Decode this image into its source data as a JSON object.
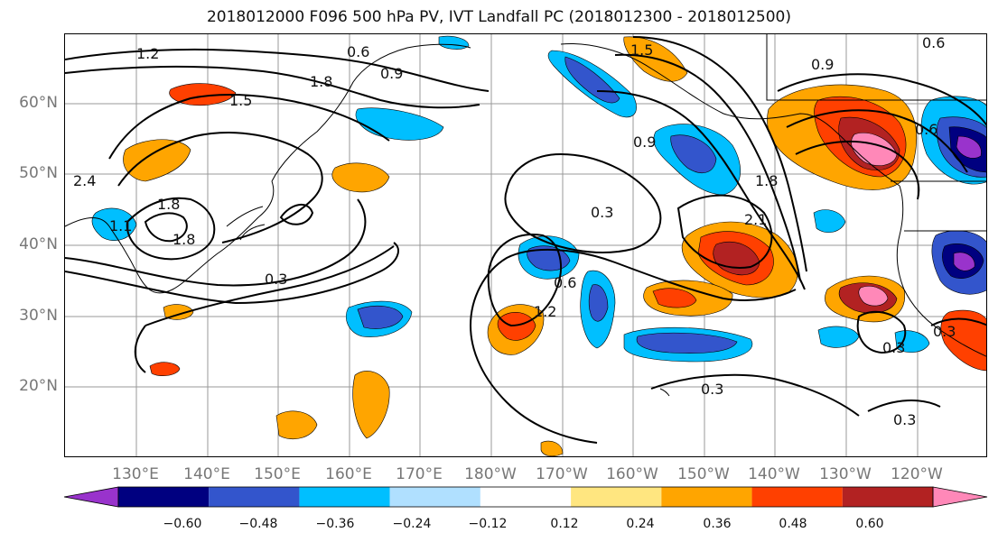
{
  "title": "2018012000 F096 500 hPa PV, IVT Landfall PC (2018012300 - 2018012500)",
  "lat_labels": [
    "60°N",
    "50°N",
    "40°N",
    "30°N",
    "20°N"
  ],
  "lon_labels": [
    "130°E",
    "140°E",
    "150°E",
    "160°E",
    "170°E",
    "180°W",
    "170°W",
    "160°W",
    "150°W",
    "140°W",
    "130°W",
    "120°W"
  ],
  "colorbar": {
    "ticks": [
      "−0.60",
      "−0.48",
      "−0.36",
      "−0.24",
      "−0.12",
      "0.12",
      "0.24",
      "0.36",
      "0.48",
      "0.60"
    ],
    "colors": [
      "#9933cc",
      "#000080",
      "#3355cc",
      "#00bfff",
      "#b0e0ff",
      "#ffffff",
      "#ffe680",
      "#ffa500",
      "#ff4000",
      "#b22222",
      "#ff88b8"
    ]
  },
  "contour_labels": [
    "1.2",
    "0.6",
    "0.9",
    "1.5",
    "1.8",
    "1.5",
    "2.4",
    "1.8",
    "1.1",
    "1.8",
    "0.3",
    "0.3",
    "0.6",
    "1.2",
    "0.9",
    "1.8",
    "2.1",
    "0.3",
    "0.9",
    "0.6",
    "0.3",
    "0.3",
    "0.3",
    "0.6"
  ],
  "colors": {
    "contour": "#000000",
    "grid": "#999999",
    "coast": "#000000"
  }
}
